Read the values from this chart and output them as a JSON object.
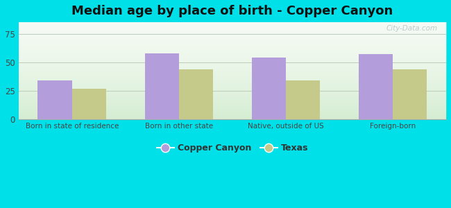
{
  "title": "Median age by place of birth - Copper Canyon",
  "categories": [
    "Born in state of residence",
    "Born in other state",
    "Native, outside of US",
    "Foreign-born"
  ],
  "copper_canyon": [
    34,
    58,
    54,
    57
  ],
  "texas": [
    27,
    44,
    34,
    44
  ],
  "copper_canyon_color": "#b39ddb",
  "texas_color": "#c5c98a",
  "background_outer": "#00e0e8",
  "ylim": [
    0,
    85
  ],
  "yticks": [
    0,
    25,
    50,
    75
  ],
  "legend_labels": [
    "Copper Canyon",
    "Texas"
  ],
  "bar_width": 0.32,
  "grid_color": "#bbccbb",
  "title_fontsize": 13
}
